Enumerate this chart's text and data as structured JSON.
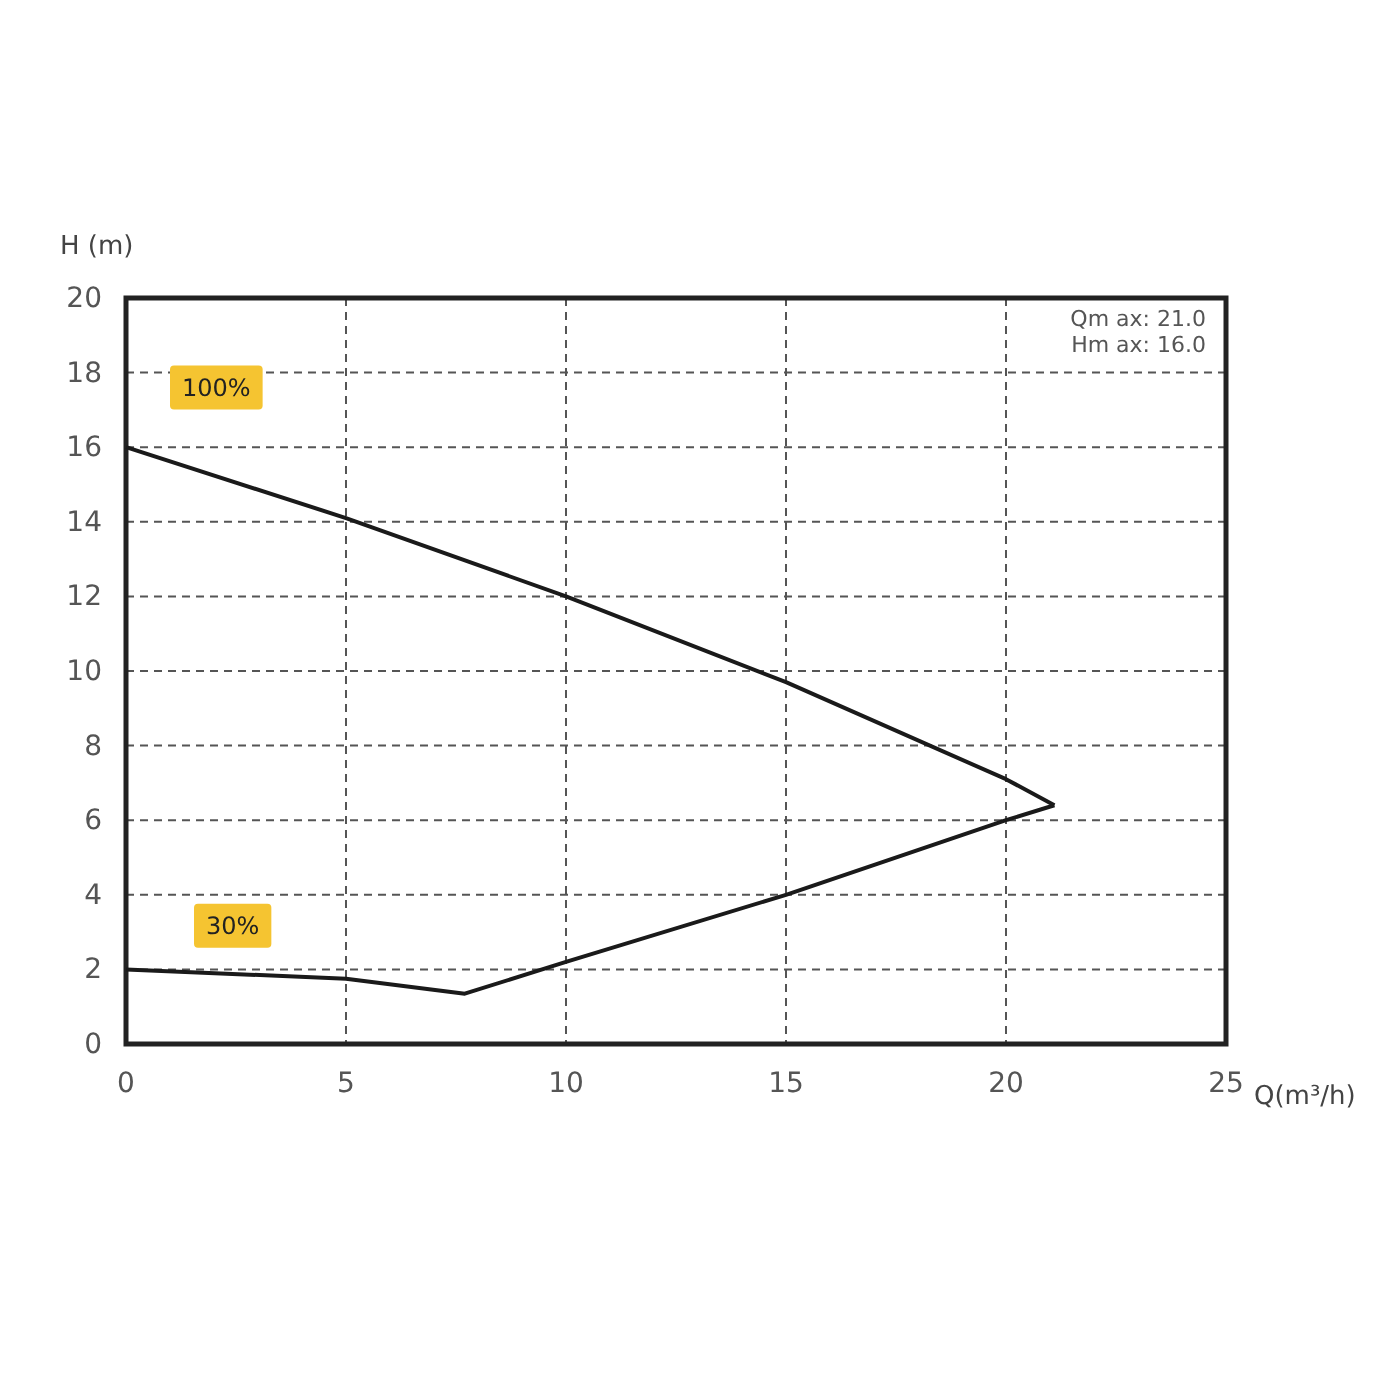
{
  "chart_data": {
    "type": "line",
    "xlabel": "Q(m³/h)",
    "ylabel": "H (m)",
    "series": [
      {
        "name": "100%",
        "color": "#1a1a1a",
        "x": [
          0,
          5,
          10,
          15,
          20,
          21.1
        ],
        "values": [
          16,
          14.1,
          12,
          9.7,
          7.1,
          6.4
        ]
      },
      {
        "name": "30%",
        "color": "#1a1a1a",
        "x": [
          0,
          5,
          7.7,
          10,
          15,
          20,
          21.1
        ],
        "values": [
          2,
          1.75,
          1.35,
          2.2,
          4,
          6,
          6.4
        ]
      }
    ],
    "xlim": [
      0,
      25
    ],
    "xticks": [
      0,
      5,
      10,
      15,
      20,
      25
    ],
    "ylim": [
      0,
      20
    ],
    "yticks": [
      0,
      2,
      4,
      6,
      8,
      10,
      12,
      14,
      16,
      18,
      20
    ],
    "grid": true,
    "marker": "none",
    "line_style": "solid",
    "annotations": [
      "Qm ax: 21.0",
      "Hm ax: 16.0"
    ]
  }
}
